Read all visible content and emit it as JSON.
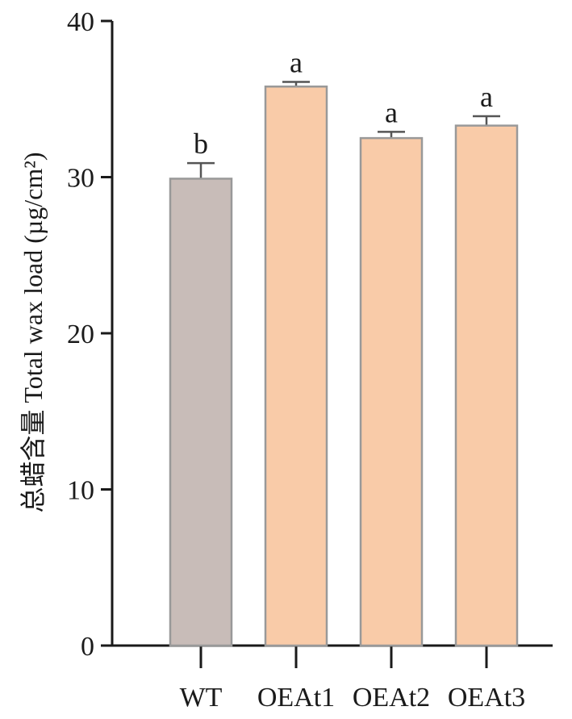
{
  "chart_data": {
    "type": "bar",
    "title": "",
    "xlabel": "",
    "ylabel": "总蜡含量 Total wax load (µg/cm²)",
    "ylim": [
      0,
      40
    ],
    "yticks": [
      0,
      10,
      20,
      30,
      40
    ],
    "categories": [
      "WT",
      "OEAt1",
      "OEAt2",
      "OEAt3"
    ],
    "values": [
      29.9,
      35.8,
      32.5,
      33.3
    ],
    "errors": [
      1.0,
      0.3,
      0.4,
      0.6
    ],
    "significance": [
      "b",
      "a",
      "a",
      "a"
    ],
    "bar_colors": [
      "#c8bcb8",
      "#f9cba8",
      "#f9cba8",
      "#f9cba8"
    ],
    "bar_stroke": "#999999",
    "grid": false,
    "legend": "none"
  }
}
